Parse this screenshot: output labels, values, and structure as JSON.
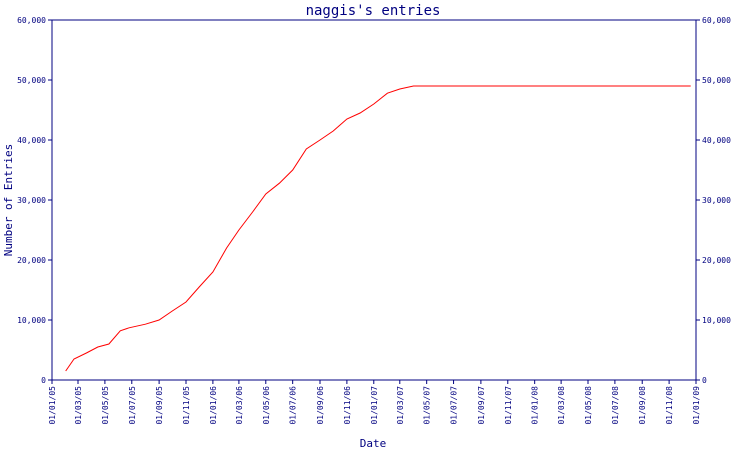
{
  "chart_data": {
    "type": "line",
    "title": "naggis's entries",
    "xlabel": "Date",
    "ylabel": "Number of Entries",
    "ylim": [
      0,
      60000
    ],
    "xlim": [
      "2005-01-01",
      "2009-01-01"
    ],
    "y_ticks": [
      0,
      10000,
      20000,
      30000,
      40000,
      50000,
      60000
    ],
    "y_tick_labels": [
      "0",
      "10,000",
      "20,000",
      "30,000",
      "40,000",
      "50,000",
      "60,000"
    ],
    "x_ticks": [
      "2005-01-01",
      "2005-03-01",
      "2005-05-01",
      "2005-07-01",
      "2005-09-01",
      "2005-11-01",
      "2006-01-01",
      "2006-03-01",
      "2006-05-01",
      "2006-07-01",
      "2006-09-01",
      "2006-11-01",
      "2007-01-01",
      "2007-03-01",
      "2007-05-01",
      "2007-07-01",
      "2007-09-01",
      "2007-11-01",
      "2008-01-01",
      "2008-03-01",
      "2008-05-01",
      "2008-07-01",
      "2008-09-01",
      "2008-11-01",
      "2009-01-01"
    ],
    "x_tick_labels": [
      "01/01/05",
      "01/03/05",
      "01/05/05",
      "01/07/05",
      "01/09/05",
      "01/11/05",
      "01/01/06",
      "01/03/06",
      "01/05/06",
      "01/07/06",
      "01/09/06",
      "01/11/06",
      "01/01/07",
      "01/03/07",
      "01/05/07",
      "01/07/07",
      "01/09/07",
      "01/11/07",
      "01/01/08",
      "01/03/08",
      "01/05/08",
      "01/07/08",
      "01/09/08",
      "01/11/08",
      "01/01/09"
    ],
    "series": [
      {
        "color": "#ff0000",
        "points": [
          [
            "2005-02-01",
            1500
          ],
          [
            "2005-02-20",
            3500
          ],
          [
            "2005-03-20",
            4500
          ],
          [
            "2005-04-15",
            5500
          ],
          [
            "2005-05-10",
            6000
          ],
          [
            "2005-06-05",
            8200
          ],
          [
            "2005-06-25",
            8700
          ],
          [
            "2005-08-01",
            9300
          ],
          [
            "2005-09-01",
            10000
          ],
          [
            "2005-10-01",
            11500
          ],
          [
            "2005-11-01",
            13000
          ],
          [
            "2005-12-01",
            15500
          ],
          [
            "2006-01-01",
            18000
          ],
          [
            "2006-02-01",
            22000
          ],
          [
            "2006-03-01",
            25000
          ],
          [
            "2006-04-01",
            28000
          ],
          [
            "2006-05-01",
            31000
          ],
          [
            "2006-06-01",
            32800
          ],
          [
            "2006-07-01",
            35000
          ],
          [
            "2006-08-01",
            38500
          ],
          [
            "2006-09-01",
            40000
          ],
          [
            "2006-10-01",
            41500
          ],
          [
            "2006-11-01",
            43500
          ],
          [
            "2006-12-01",
            44500
          ],
          [
            "2007-01-01",
            46000
          ],
          [
            "2007-02-01",
            47800
          ],
          [
            "2007-03-01",
            48500
          ],
          [
            "2007-04-01",
            49000
          ],
          [
            "2007-06-01",
            49000
          ],
          [
            "2008-12-20",
            49000
          ]
        ]
      }
    ],
    "colors": {
      "axis": "#000080",
      "text": "#000080",
      "line": "#ff0000"
    }
  }
}
